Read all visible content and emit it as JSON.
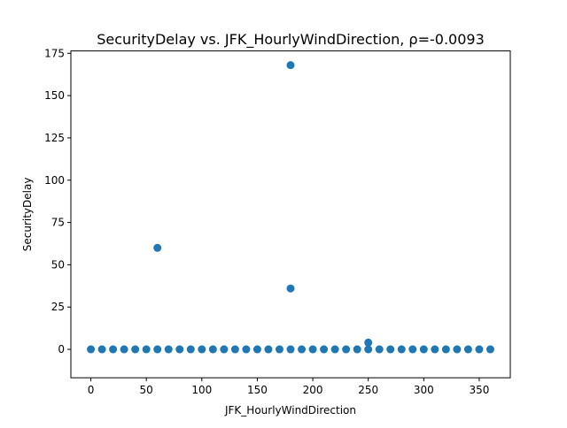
{
  "chart_data": {
    "type": "scatter",
    "title": "SecurityDelay vs. JFK_HourlyWindDirection, ρ=-0.0093",
    "xlabel": "JFK_HourlyWindDirection",
    "ylabel": "SecurityDelay",
    "xlim": [
      -18,
      378
    ],
    "ylim": [
      -16.8,
      176.4
    ],
    "xticks": [
      0,
      50,
      100,
      150,
      200,
      250,
      300,
      350
    ],
    "yticks": [
      0,
      25,
      50,
      75,
      100,
      125,
      150,
      175
    ],
    "grid": false,
    "marker_color": "#1f77b4",
    "series": [
      {
        "x": [
          0,
          10,
          20,
          30,
          40,
          50,
          60,
          70,
          80,
          90,
          100,
          110,
          120,
          130,
          140,
          150,
          160,
          170,
          180,
          190,
          200,
          210,
          220,
          230,
          240,
          250,
          260,
          270,
          280,
          290,
          300,
          310,
          320,
          330,
          340,
          350,
          360,
          60,
          180,
          180,
          250
        ],
        "y": [
          0,
          0,
          0,
          0,
          0,
          0,
          0,
          0,
          0,
          0,
          0,
          0,
          0,
          0,
          0,
          0,
          0,
          0,
          0,
          0,
          0,
          0,
          0,
          0,
          0,
          0,
          0,
          0,
          0,
          0,
          0,
          0,
          0,
          0,
          0,
          0,
          0,
          60,
          168,
          36,
          4
        ]
      }
    ]
  }
}
